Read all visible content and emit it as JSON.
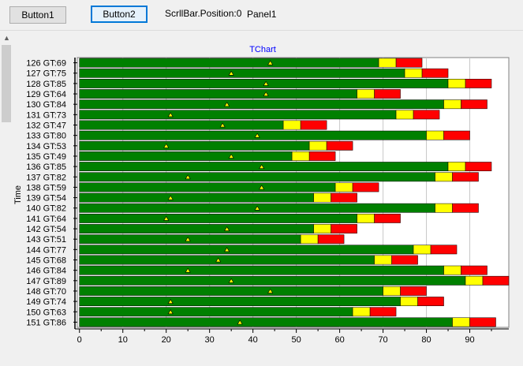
{
  "toolbar": {
    "button1_label": "Button1",
    "button2_label": "Button2",
    "scroll_position_text": "ScrllBar.Position:0",
    "panel_label": "Panel1"
  },
  "chart_data": {
    "type": "bar",
    "title": "TChart",
    "ylabel": "Time",
    "xlabel": "",
    "orientation": "horizontal",
    "stacked": true,
    "xlim": [
      -0.5,
      99
    ],
    "xticks": [
      0,
      10,
      20,
      30,
      40,
      50,
      60,
      70,
      80,
      90
    ],
    "grid": true,
    "colors": {
      "green": "#008000",
      "yellow": "#ffff00",
      "red": "#ff0000",
      "marker": "#ffff00"
    },
    "categories": [
      "126 GT:69",
      "127 GT:75",
      "128 GT:85",
      "129 GT:64",
      "130 GT:84",
      "131 GT:73",
      "132 GT:47",
      "133 GT:80",
      "134 GT:53",
      "135 GT:49",
      "136 GT:85",
      "137 GT:82",
      "138 GT:59",
      "139 GT:54",
      "140 GT:82",
      "141 GT:64",
      "142 GT:54",
      "143 GT:51",
      "144 GT:77",
      "145 GT:68",
      "146 GT:84",
      "147 GT:89",
      "148 GT:70",
      "149 GT:74",
      "150 GT:63",
      "151 GT:86"
    ],
    "series": [
      {
        "name": "",
        "color": "green",
        "values": [
          69,
          75,
          85,
          64,
          84,
          73,
          47,
          80,
          53,
          49,
          85,
          82,
          59,
          54,
          82,
          64,
          54,
          51,
          77,
          68,
          84,
          89,
          70,
          74,
          63,
          86
        ]
      },
      {
        "name": "",
        "color": "yellow",
        "values": [
          4,
          4,
          4,
          4,
          4,
          4,
          4,
          4,
          4,
          4,
          4,
          4,
          4,
          4,
          4,
          4,
          4,
          4,
          4,
          4,
          4,
          4,
          4,
          4,
          4,
          4
        ]
      },
      {
        "name": "",
        "color": "red",
        "values": [
          6,
          6,
          6,
          6,
          6,
          6,
          6,
          6,
          6,
          6,
          6,
          6,
          6,
          6,
          6,
          6,
          6,
          6,
          6,
          6,
          6,
          6,
          6,
          6,
          6,
          6
        ]
      }
    ],
    "markers": [
      44,
      35,
      43,
      43,
      34,
      21,
      33,
      41,
      20,
      35,
      42,
      25,
      42,
      21,
      41,
      20,
      34,
      25,
      34,
      32,
      25,
      35,
      44,
      21,
      21,
      37
    ]
  }
}
